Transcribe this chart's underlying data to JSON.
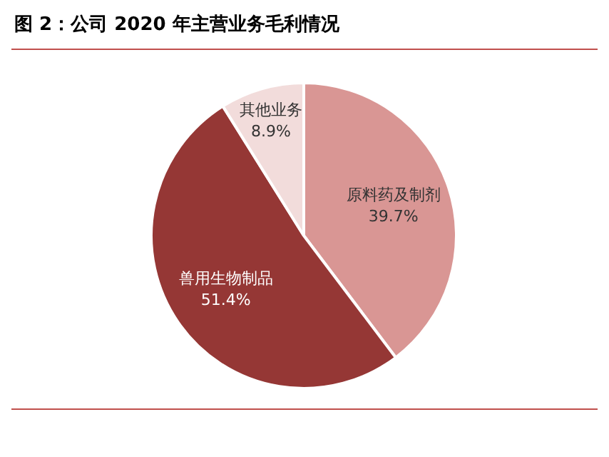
{
  "chart_data": {
    "type": "pie",
    "title": "图 2：公司 2020 年主营业务毛利情况",
    "categories": [
      "原料药及制剂",
      "兽用生物制品",
      "其他业务"
    ],
    "values": [
      39.7,
      51.4,
      8.9
    ],
    "colors": [
      "#d99694",
      "#953735",
      "#f2dcdb"
    ],
    "value_labels": [
      "39.7%",
      "51.4%",
      "8.9%"
    ],
    "legend": false
  }
}
